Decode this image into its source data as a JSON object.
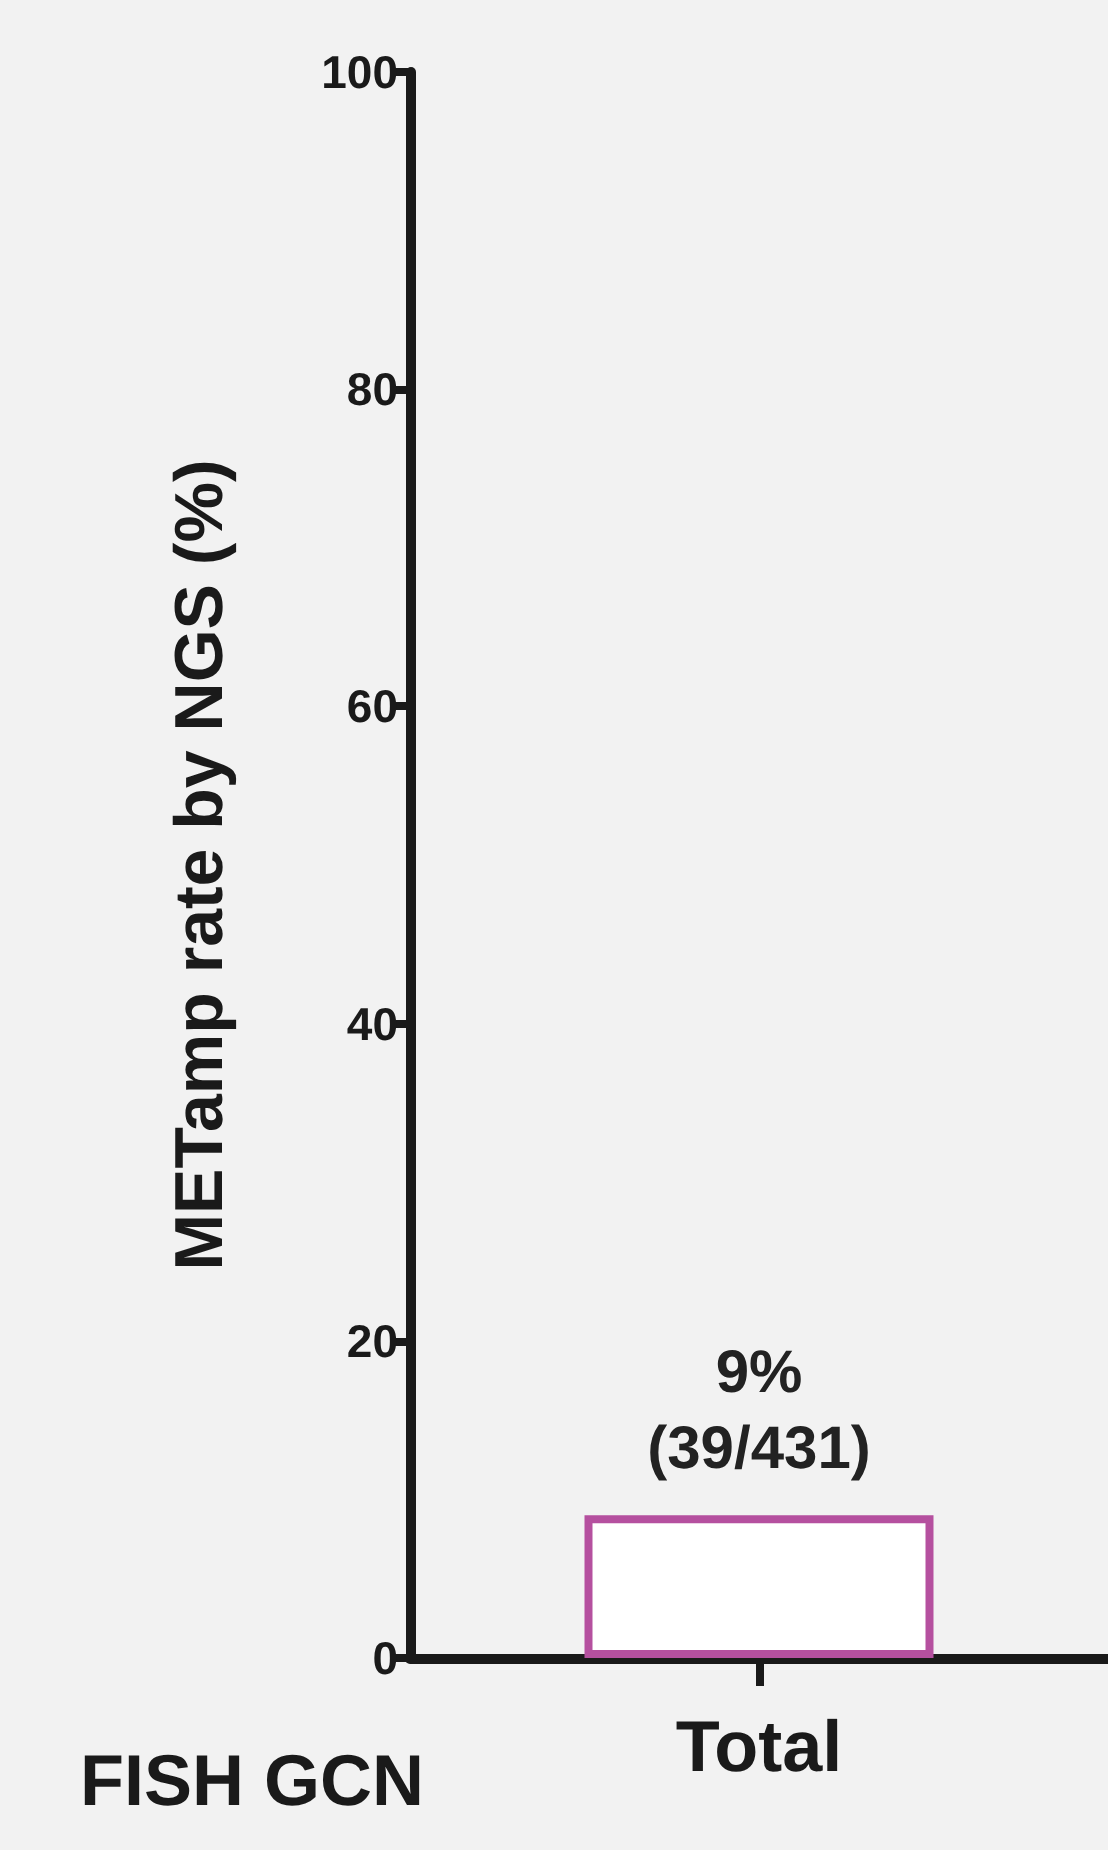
{
  "chart_data": {
    "type": "bar",
    "ylabel": "METamp rate by NGS (%)",
    "xlabel": "FISH GCN",
    "categories": [
      "Total"
    ],
    "values": [
      9
    ],
    "color": "#b5509f",
    "value_labels": [
      "9%\n(39/431)"
    ],
    "ylim": [
      0,
      100
    ],
    "yticks": [
      0,
      20,
      40,
      60,
      80,
      100
    ],
    "grid": false
  }
}
